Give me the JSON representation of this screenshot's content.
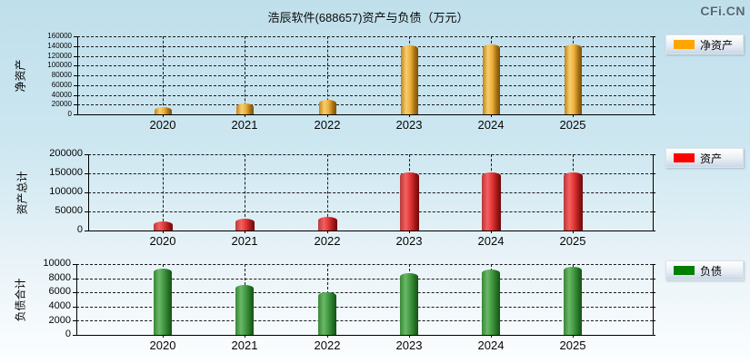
{
  "page": {
    "title": "浩辰软件(688657)资产与负债（万元）",
    "logo": "CFi.CN"
  },
  "colors": {
    "net_assets": "#FFA500",
    "assets": "#FF0000",
    "liabilities": "#008000",
    "background_top": "#bfdfeb",
    "background_bottom": "#fcfeff",
    "gridline": "#1a1a1a"
  },
  "chart_data": [
    {
      "type": "bar",
      "ylabel": "净资产",
      "legend": {
        "label": "净资产",
        "color": "#FFA500"
      },
      "legend_position": "right",
      "grid": "dashed",
      "categories": [
        "2020",
        "2021",
        "2022",
        "2023",
        "2024",
        "2025"
      ],
      "values": [
        15000,
        22500,
        29500,
        142000,
        143000,
        142500
      ],
      "ylim": [
        0,
        160000
      ],
      "yticks": [
        0,
        20000,
        40000,
        60000,
        80000,
        100000,
        120000,
        140000,
        160000
      ]
    },
    {
      "type": "bar",
      "ylabel": "资产总计",
      "legend": {
        "label": "资产",
        "color": "#FF0000"
      },
      "legend_position": "right",
      "grid": "dashed",
      "categories": [
        "2020",
        "2021",
        "2022",
        "2023",
        "2024",
        "2025"
      ],
      "values": [
        25000,
        31000,
        35000,
        151500,
        152500,
        152000
      ],
      "ylim": [
        0,
        200000
      ],
      "yticks": [
        0,
        50000,
        100000,
        150000,
        200000
      ]
    },
    {
      "type": "bar",
      "ylabel": "负债合计",
      "legend": {
        "label": "负债",
        "color": "#008000"
      },
      "legend_position": "right",
      "grid": "dashed",
      "categories": [
        "2020",
        "2021",
        "2022",
        "2023",
        "2024",
        "2025"
      ],
      "values": [
        9300,
        7050,
        6000,
        8700,
        9200,
        9600
      ],
      "ylim": [
        0,
        10000
      ],
      "yticks": [
        0,
        2000,
        4000,
        6000,
        8000,
        10000
      ]
    }
  ]
}
